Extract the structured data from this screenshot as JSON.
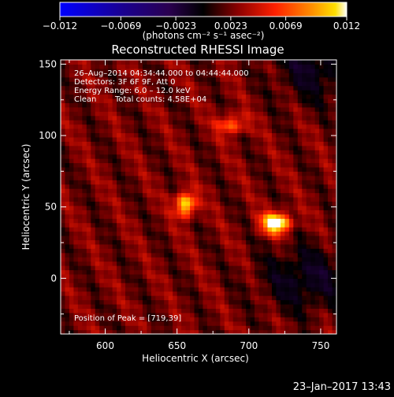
{
  "colorbar": {
    "tick_labels": [
      "−0.012",
      "−0.0069",
      "−0.0023",
      "0.0023",
      "0.0069",
      "0.012"
    ],
    "tick_values": [
      -0.012,
      -0.0069,
      -0.0023,
      0.0023,
      0.0069,
      0.012
    ],
    "range": [
      -0.012,
      0.012
    ],
    "units": "(photons cm⁻² s⁻¹ asec⁻²)",
    "colormap": [
      "#0000ff",
      "#2a0050",
      "#000000",
      "#8a0000",
      "#ff2000",
      "#ff9000",
      "#ffe000",
      "#ffffff"
    ]
  },
  "annotations": {
    "time_range": "26–Aug–2014 04:34:44.000 to 04:44:44.000",
    "detectors": "Detectors: 3F 6F 9F, Att 0",
    "energy": "Energy Range: 6.0 – 12.0 keV",
    "clean_label": "Clean",
    "total_counts": "Total counts: 4.58E+04",
    "peak": "Position of Peak = [719,39]"
  },
  "footer": {
    "timestamp": "23–Jan–2017 13:43"
  },
  "chart_data": {
    "type": "heatmap",
    "title": "Reconstructed RHESSI Image",
    "xlabel": "Heliocentric X (arcsec)",
    "ylabel": "Heliocentric Y (arcsec)",
    "xlim": [
      569,
      761
    ],
    "ylim": [
      -39,
      153
    ],
    "x_ticks": [
      600,
      650,
      700,
      750
    ],
    "y_ticks": [
      0,
      50,
      100,
      150
    ],
    "x_tick_labels": [
      "600",
      "650",
      "700",
      "750"
    ],
    "y_tick_labels": [
      "0",
      "50",
      "100",
      "150"
    ],
    "sources": [
      {
        "x": 719,
        "y": 39,
        "value": 0.012,
        "sx": 7,
        "sy": 5
      },
      {
        "x": 656,
        "y": 52,
        "value": 0.0095,
        "sx": 5,
        "sy": 6
      },
      {
        "x": 688,
        "y": 108,
        "value": 0.0055,
        "sx": 7,
        "sy": 5
      }
    ],
    "background_level": 0.0032,
    "peak_position": [
      719,
      39
    ]
  }
}
